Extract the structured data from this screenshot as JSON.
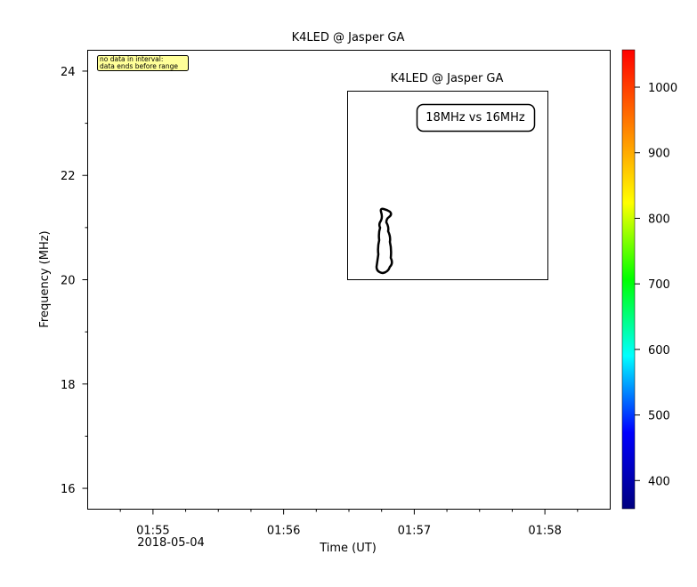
{
  "chart_data": {
    "type": "spectrogram",
    "title": "K4LED @ Jasper GA",
    "xlabel": "Time (UT)",
    "ylabel": "Frequency (MHz)",
    "xlim": [
      "2018-05-04T01:54:30Z",
      "2018-05-04T01:58:30Z"
    ],
    "xticks": [
      {
        "value": "2018-05-04T01:55:00Z",
        "label": "01:55"
      },
      {
        "value": "2018-05-04T01:56:00Z",
        "label": "01:56"
      },
      {
        "value": "2018-05-04T01:57:00Z",
        "label": "01:57"
      },
      {
        "value": "2018-05-04T01:58:00Z",
        "label": "01:58"
      }
    ],
    "xminorticks": [
      "2018-05-04T01:54:45Z",
      "2018-05-04T01:55:15Z",
      "2018-05-04T01:55:30Z",
      "2018-05-04T01:55:45Z",
      "2018-05-04T01:56:15Z",
      "2018-05-04T01:56:30Z",
      "2018-05-04T01:56:45Z",
      "2018-05-04T01:57:15Z",
      "2018-05-04T01:57:30Z",
      "2018-05-04T01:57:45Z",
      "2018-05-04T01:58:15Z"
    ],
    "x_date_label": "2018-05-04",
    "ylim": [
      15.6,
      24.4
    ],
    "yticks": [
      16,
      18,
      20,
      22,
      24
    ],
    "yminorticks": [
      17,
      19,
      21,
      23
    ],
    "zlim": [
      357,
      1057
    ],
    "zticks": [
      400,
      500,
      600,
      700,
      800,
      900,
      1000
    ],
    "colormap": [
      "#00007f",
      "#0000ff",
      "#00ffff",
      "#00ff00",
      "#ffff00",
      "#ff7f00",
      "#ff0000"
    ],
    "annotation": [
      "no data in interval:",
      "data ends before range"
    ],
    "inset": {
      "title": "K4LED @ Jasper GA",
      "label": "18MHz vs 16MHz"
    }
  }
}
